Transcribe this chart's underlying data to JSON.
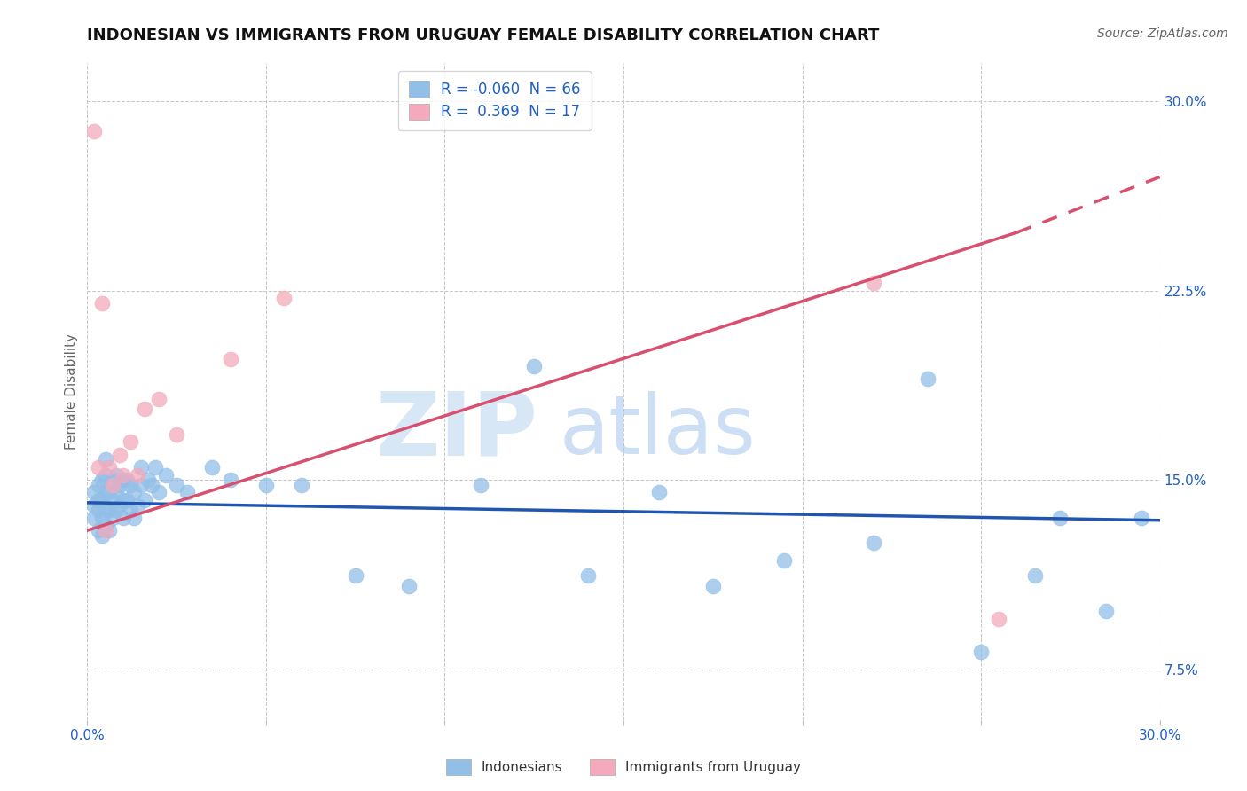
{
  "title": "INDONESIAN VS IMMIGRANTS FROM URUGUAY FEMALE DISABILITY CORRELATION CHART",
  "source": "Source: ZipAtlas.com",
  "ylabel": "Female Disability",
  "xlim": [
    0.0,
    0.3
  ],
  "ylim": [
    0.055,
    0.315
  ],
  "xticks": [
    0.0,
    0.05,
    0.1,
    0.15,
    0.2,
    0.25,
    0.3
  ],
  "xtick_labels": [
    "0.0%",
    "",
    "",
    "",
    "",
    "",
    "30.0%"
  ],
  "yticks": [
    0.075,
    0.15,
    0.225,
    0.3
  ],
  "ytick_labels": [
    "7.5%",
    "15.0%",
    "22.5%",
    "30.0%"
  ],
  "blue_R": -0.06,
  "blue_N": 66,
  "pink_R": 0.369,
  "pink_N": 17,
  "blue_dot_color": "#92bfe8",
  "pink_dot_color": "#f4aabc",
  "blue_line_color": "#2055b0",
  "pink_line_color": "#d85070",
  "axis_color": "#2060c0",
  "background_color": "#ffffff",
  "grid_color": "#c8c8c8",
  "blue_line_start_y": 0.141,
  "blue_line_end_y": 0.134,
  "pink_line_start_y": 0.13,
  "pink_line_end_solid_x": 0.26,
  "pink_line_end_solid_y": 0.248,
  "pink_line_end_dash_x": 0.3,
  "pink_line_end_dash_y": 0.27,
  "indonesians_x": [
    0.002,
    0.002,
    0.002,
    0.003,
    0.003,
    0.003,
    0.003,
    0.004,
    0.004,
    0.004,
    0.004,
    0.005,
    0.005,
    0.005,
    0.005,
    0.005,
    0.006,
    0.006,
    0.006,
    0.007,
    0.007,
    0.007,
    0.008,
    0.008,
    0.008,
    0.009,
    0.009,
    0.01,
    0.01,
    0.01,
    0.011,
    0.011,
    0.012,
    0.012,
    0.013,
    0.013,
    0.014,
    0.015,
    0.015,
    0.016,
    0.017,
    0.018,
    0.019,
    0.02,
    0.022,
    0.025,
    0.028,
    0.035,
    0.04,
    0.05,
    0.06,
    0.075,
    0.09,
    0.11,
    0.125,
    0.14,
    0.16,
    0.175,
    0.195,
    0.22,
    0.235,
    0.25,
    0.265,
    0.272,
    0.285,
    0.295
  ],
  "indonesians_y": [
    0.135,
    0.14,
    0.145,
    0.13,
    0.138,
    0.142,
    0.148,
    0.128,
    0.135,
    0.142,
    0.15,
    0.132,
    0.138,
    0.145,
    0.152,
    0.158,
    0.13,
    0.138,
    0.145,
    0.135,
    0.142,
    0.15,
    0.138,
    0.145,
    0.152,
    0.14,
    0.148,
    0.135,
    0.142,
    0.15,
    0.142,
    0.15,
    0.138,
    0.148,
    0.135,
    0.145,
    0.14,
    0.148,
    0.155,
    0.142,
    0.15,
    0.148,
    0.155,
    0.145,
    0.152,
    0.148,
    0.145,
    0.155,
    0.15,
    0.148,
    0.148,
    0.112,
    0.108,
    0.148,
    0.195,
    0.112,
    0.145,
    0.108,
    0.118,
    0.125,
    0.19,
    0.082,
    0.112,
    0.135,
    0.098,
    0.135
  ],
  "uruguay_x": [
    0.002,
    0.003,
    0.004,
    0.005,
    0.006,
    0.007,
    0.009,
    0.01,
    0.012,
    0.014,
    0.016,
    0.02,
    0.025,
    0.04,
    0.055,
    0.22,
    0.255
  ],
  "uruguay_y": [
    0.288,
    0.155,
    0.22,
    0.13,
    0.155,
    0.148,
    0.16,
    0.152,
    0.165,
    0.152,
    0.178,
    0.182,
    0.168,
    0.198,
    0.222,
    0.228,
    0.095
  ],
  "title_fontsize": 13,
  "ylabel_fontsize": 11,
  "tick_fontsize": 11,
  "legend_fontsize": 12,
  "source_fontsize": 10
}
